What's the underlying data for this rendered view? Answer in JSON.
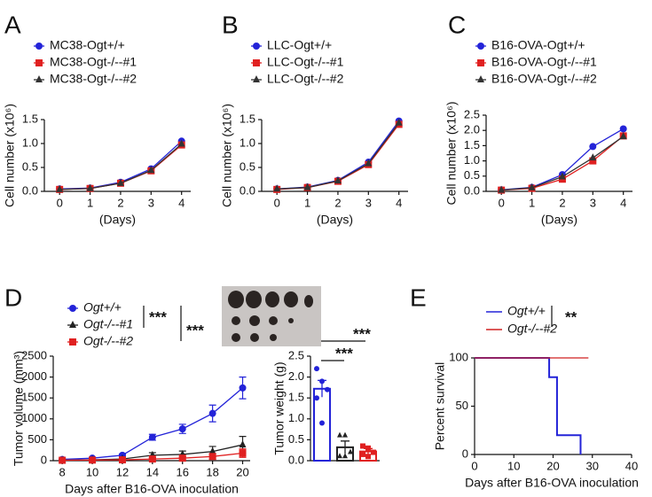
{
  "chart_data": [
    {
      "panel": "A",
      "type": "line",
      "xlabel": "(Days)",
      "ylabel": "Cell number (x10⁶)",
      "xlim": [
        -0.5,
        4.3
      ],
      "ylim": [
        0,
        1.5
      ],
      "xticks": [
        0,
        1,
        2,
        3,
        4
      ],
      "yticks": [
        {
          "value": 0,
          "label": "0.0"
        },
        0.5,
        {
          "value": 1,
          "label": "1.0"
        },
        1.5
      ],
      "x": [
        0,
        1,
        2,
        3,
        4
      ],
      "series": [
        {
          "name": "MC38-Ogt+/+",
          "color": "#2323d8",
          "marker": "circle",
          "values": [
            0.05,
            0.07,
            0.19,
            0.47,
            1.05
          ]
        },
        {
          "name": "MC38-Ogt-/--#1",
          "color": "#e02020",
          "marker": "square",
          "values": [
            0.04,
            0.06,
            0.17,
            0.43,
            0.97
          ]
        },
        {
          "name": "MC38-Ogt-/--#2",
          "color": "#333333",
          "marker": "triangle",
          "values": [
            0.04,
            0.06,
            0.17,
            0.44,
            0.99
          ]
        }
      ]
    },
    {
      "panel": "B",
      "type": "line",
      "xlabel": "(Days)",
      "ylabel": "Cell number (x10⁶)",
      "xlim": [
        -0.5,
        4.3
      ],
      "ylim": [
        0,
        1.5
      ],
      "xticks": [
        0,
        1,
        2,
        3,
        4
      ],
      "yticks": [
        {
          "value": 0,
          "label": "0.0"
        },
        0.5,
        {
          "value": 1,
          "label": "1.0"
        },
        1.5
      ],
      "x": [
        0,
        1,
        2,
        3,
        4
      ],
      "series": [
        {
          "name": "LLC-Ogt+/+",
          "color": "#2323d8",
          "marker": "circle",
          "values": [
            0.05,
            0.09,
            0.23,
            0.61,
            1.47
          ]
        },
        {
          "name": "LLC-Ogt-/--#1",
          "color": "#e02020",
          "marker": "square",
          "values": [
            0.04,
            0.08,
            0.21,
            0.56,
            1.4
          ]
        },
        {
          "name": "LLC-Ogt-/--#2",
          "color": "#333333",
          "marker": "triangle",
          "values": [
            0.05,
            0.08,
            0.22,
            0.58,
            1.43
          ]
        }
      ]
    },
    {
      "panel": "C",
      "type": "line",
      "xlabel": "(Days)",
      "ylabel": "Cell number (x10⁶)",
      "xlim": [
        -0.5,
        4.3
      ],
      "ylim": [
        0,
        2.5
      ],
      "xticks": [
        0,
        1,
        2,
        3,
        4
      ],
      "yticks": [
        {
          "value": 0,
          "label": "0.0"
        },
        0.5,
        {
          "value": 1,
          "label": "1.0"
        },
        1.5,
        {
          "value": 2,
          "label": "2.0"
        },
        2.5
      ],
      "x": [
        0,
        1,
        2,
        3,
        4
      ],
      "series": [
        {
          "name": "B16-OVA-Ogt+/+",
          "color": "#2323d8",
          "marker": "circle",
          "values": [
            0.05,
            0.13,
            0.55,
            1.47,
            2.05
          ]
        },
        {
          "name": "B16-OVA-Ogt-/--#1",
          "color": "#e02020",
          "marker": "square",
          "values": [
            0.04,
            0.1,
            0.4,
            1.0,
            1.82
          ]
        },
        {
          "name": "B16-OVA-Ogt-/--#2",
          "color": "#333333",
          "marker": "triangle",
          "values": [
            0.04,
            0.12,
            0.48,
            1.1,
            1.8
          ]
        }
      ]
    },
    {
      "panel": "D",
      "type": "line",
      "xlabel": "Days after B16-OVA inoculation",
      "ylabel": "Tumor volume (mm³)",
      "xlim": [
        7.4,
        20.5
      ],
      "ylim": [
        0,
        2500
      ],
      "xticks": [
        8,
        10,
        12,
        14,
        16,
        18,
        20
      ],
      "yticks": [
        0,
        500,
        1000,
        1500,
        2000,
        2500
      ],
      "x": [
        8,
        10,
        12,
        14,
        16,
        18,
        20
      ],
      "annotations": [
        "***",
        "***"
      ],
      "series": [
        {
          "name": "Ogt+/+",
          "color": "#2323d8",
          "marker": "circle",
          "values": [
            30,
            60,
            130,
            560,
            760,
            1130,
            1740
          ],
          "errors": [
            10,
            20,
            30,
            70,
            110,
            200,
            260
          ]
        },
        {
          "name": "Ogt-/--#1",
          "color": "#222222",
          "marker": "triangle",
          "values": [
            10,
            20,
            40,
            130,
            150,
            220,
            380
          ],
          "errors": [
            5,
            10,
            20,
            60,
            80,
            120,
            200
          ]
        },
        {
          "name": "Ogt-/--#2",
          "color": "#e02020",
          "marker": "square",
          "values": [
            10,
            15,
            20,
            40,
            60,
            100,
            180
          ],
          "errors": [
            5,
            5,
            10,
            20,
            40,
            60,
            100
          ]
        }
      ]
    },
    {
      "type": "bar",
      "ylabel": "Tumor weight (g)",
      "ylim": [
        0,
        2.5
      ],
      "yticks": [
        {
          "value": 0,
          "label": "0.0"
        },
        0.5,
        {
          "value": 1,
          "label": "1.0"
        },
        1.5,
        {
          "value": 2,
          "label": "2.0"
        },
        2.5
      ],
      "categories": [
        null,
        null,
        null
      ],
      "values": [
        1.72,
        0.32,
        0.22
      ],
      "errors": [
        0.2,
        0.15,
        0.07
      ],
      "colors": [
        "#2323d8",
        "#222222",
        "#e02020"
      ],
      "markers": [
        "circle",
        "triangle",
        "square"
      ],
      "points": [
        [
          2.2,
          1.9,
          1.7,
          1.5,
          0.9
        ],
        [
          0.6,
          0.6,
          0.2,
          0.1,
          0.1
        ],
        [
          0.35,
          0.3,
          0.2,
          0.15,
          0.1
        ]
      ],
      "annotations": [
        "***",
        "***"
      ]
    },
    {
      "panel": "E",
      "type": "step",
      "xlabel": "Days after B16-OVA inoculation",
      "ylabel": "Percent survival",
      "xlim": [
        0,
        40
      ],
      "ylim": [
        0,
        100
      ],
      "xticks": [
        0,
        10,
        20,
        30,
        40
      ],
      "yticks": [
        0,
        50,
        100
      ],
      "annotations": [
        "**"
      ],
      "series": [
        {
          "name": "Ogt+/+",
          "color": "#2323d8",
          "x": [
            0,
            19,
            19,
            21,
            21,
            27,
            27
          ],
          "values": [
            100,
            100,
            80,
            80,
            20,
            20,
            0
          ]
        },
        {
          "name": "Ogt-/--#2",
          "color": "#d02020",
          "x": [
            0,
            29
          ],
          "values": [
            100,
            100
          ]
        }
      ]
    }
  ]
}
